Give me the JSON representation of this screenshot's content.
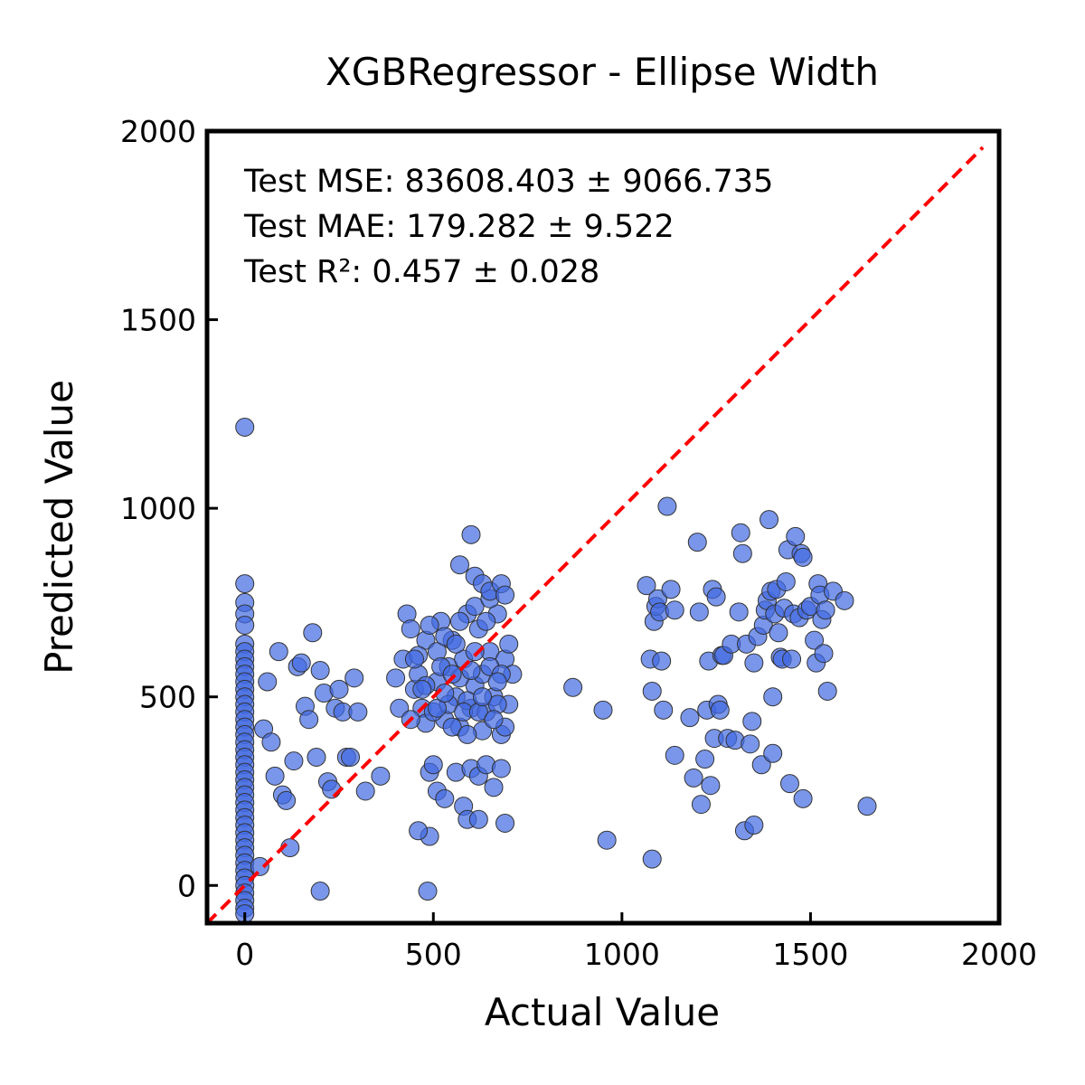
{
  "chart_data": {
    "type": "scatter",
    "title": "XGBRegressor - Ellipse Width",
    "xlabel": "Actual Value",
    "ylabel": "Predicted Value",
    "xlim": [
      -100,
      2000
    ],
    "ylim": [
      -100,
      2000
    ],
    "xticks": [
      "0",
      "500",
      "1000",
      "1500",
      "2000"
    ],
    "yticks": [
      "0",
      "500",
      "1000",
      "1500",
      "2000"
    ],
    "grid": false,
    "point_color": "#4169e1",
    "point_edge_color": "#333333",
    "reference_line": {
      "style": "dashed",
      "color": "#ff0000",
      "from": [
        -100,
        -100
      ],
      "to": [
        2000,
        2000
      ]
    },
    "annotations": [
      "Test MSE: 83608.403 ± 9066.735",
      "Test MAE: 179.282 ± 9.522",
      "Test R²: 0.457 ± 0.028"
    ],
    "points": [
      [
        0,
        1215
      ],
      [
        0,
        800
      ],
      [
        0,
        750
      ],
      [
        0,
        720
      ],
      [
        0,
        690
      ],
      [
        0,
        640
      ],
      [
        0,
        620
      ],
      [
        0,
        600
      ],
      [
        0,
        580
      ],
      [
        0,
        560
      ],
      [
        0,
        540
      ],
      [
        0,
        520
      ],
      [
        0,
        500
      ],
      [
        0,
        480
      ],
      [
        0,
        460
      ],
      [
        0,
        440
      ],
      [
        0,
        420
      ],
      [
        0,
        400
      ],
      [
        0,
        380
      ],
      [
        0,
        360
      ],
      [
        0,
        340
      ],
      [
        0,
        320
      ],
      [
        0,
        300
      ],
      [
        0,
        280
      ],
      [
        0,
        260
      ],
      [
        0,
        240
      ],
      [
        0,
        220
      ],
      [
        0,
        200
      ],
      [
        0,
        180
      ],
      [
        0,
        160
      ],
      [
        0,
        140
      ],
      [
        0,
        120
      ],
      [
        0,
        100
      ],
      [
        0,
        80
      ],
      [
        0,
        60
      ],
      [
        0,
        40
      ],
      [
        0,
        20
      ],
      [
        0,
        0
      ],
      [
        0,
        -20
      ],
      [
        0,
        -40
      ],
      [
        0,
        -60
      ],
      [
        0,
        -75
      ],
      [
        40,
        50
      ],
      [
        50,
        415
      ],
      [
        60,
        540
      ],
      [
        70,
        380
      ],
      [
        80,
        290
      ],
      [
        90,
        620
      ],
      [
        100,
        240
      ],
      [
        110,
        225
      ],
      [
        120,
        100
      ],
      [
        130,
        330
      ],
      [
        140,
        580
      ],
      [
        150,
        590
      ],
      [
        160,
        475
      ],
      [
        170,
        440
      ],
      [
        180,
        670
      ],
      [
        190,
        340
      ],
      [
        200,
        570
      ],
      [
        210,
        510
      ],
      [
        220,
        275
      ],
      [
        230,
        255
      ],
      [
        240,
        470
      ],
      [
        250,
        520
      ],
      [
        260,
        460
      ],
      [
        270,
        340
      ],
      [
        280,
        340
      ],
      [
        290,
        550
      ],
      [
        300,
        460
      ],
      [
        320,
        250
      ],
      [
        360,
        290
      ],
      [
        400,
        550
      ],
      [
        410,
        470
      ],
      [
        420,
        600
      ],
      [
        430,
        720
      ],
      [
        440,
        680
      ],
      [
        450,
        520
      ],
      [
        460,
        560
      ],
      [
        470,
        470
      ],
      [
        480,
        650
      ],
      [
        490,
        130
      ],
      [
        490,
        300
      ],
      [
        460,
        145
      ],
      [
        480,
        430
      ],
      [
        500,
        320
      ],
      [
        510,
        620
      ],
      [
        520,
        700
      ],
      [
        530,
        440
      ],
      [
        540,
        580
      ],
      [
        550,
        650
      ],
      [
        560,
        500
      ],
      [
        570,
        420
      ],
      [
        580,
        600
      ],
      [
        590,
        720
      ],
      [
        600,
        470
      ],
      [
        610,
        530
      ],
      [
        620,
        680
      ],
      [
        630,
        560
      ],
      [
        640,
        460
      ],
      [
        650,
        620
      ],
      [
        660,
        500
      ],
      [
        670,
        720
      ],
      [
        680,
        400
      ],
      [
        690,
        600
      ],
      [
        700,
        640
      ],
      [
        700,
        480
      ],
      [
        710,
        560
      ],
      [
        690,
        420
      ],
      [
        510,
        540
      ],
      [
        530,
        660
      ],
      [
        550,
        420
      ],
      [
        570,
        550
      ],
      [
        590,
        490
      ],
      [
        610,
        620
      ],
      [
        630,
        410
      ],
      [
        650,
        580
      ],
      [
        670,
        480
      ],
      [
        440,
        440
      ],
      [
        460,
        610
      ],
      [
        480,
        530
      ],
      [
        500,
        460
      ],
      [
        520,
        580
      ],
      [
        540,
        480
      ],
      [
        560,
        640
      ],
      [
        580,
        460
      ],
      [
        600,
        570
      ],
      [
        620,
        460
      ],
      [
        640,
        700
      ],
      [
        660,
        440
      ],
      [
        680,
        560
      ],
      [
        450,
        600
      ],
      [
        470,
        520
      ],
      [
        490,
        690
      ],
      [
        510,
        470
      ],
      [
        530,
        510
      ],
      [
        550,
        560
      ],
      [
        570,
        700
      ],
      [
        590,
        400
      ],
      [
        610,
        740
      ],
      [
        630,
        500
      ],
      [
        650,
        760
      ],
      [
        670,
        540
      ],
      [
        600,
        930
      ],
      [
        570,
        850
      ],
      [
        610,
        820
      ],
      [
        630,
        800
      ],
      [
        650,
        780
      ],
      [
        680,
        800
      ],
      [
        690,
        770
      ],
      [
        510,
        250
      ],
      [
        530,
        230
      ],
      [
        560,
        300
      ],
      [
        580,
        210
      ],
      [
        600,
        310
      ],
      [
        620,
        290
      ],
      [
        640,
        320
      ],
      [
        660,
        260
      ],
      [
        680,
        310
      ],
      [
        690,
        165
      ],
      [
        590,
        175
      ],
      [
        620,
        175
      ],
      [
        870,
        525
      ],
      [
        950,
        465
      ],
      [
        960,
        120
      ],
      [
        1065,
        795
      ],
      [
        1075,
        600
      ],
      [
        1080,
        515
      ],
      [
        1085,
        700
      ],
      [
        1090,
        740
      ],
      [
        1095,
        760
      ],
      [
        1100,
        725
      ],
      [
        1105,
        595
      ],
      [
        1110,
        465
      ],
      [
        1120,
        1005
      ],
      [
        1130,
        785
      ],
      [
        1140,
        730
      ],
      [
        1140,
        345
      ],
      [
        1080,
        70
      ],
      [
        1180,
        445
      ],
      [
        1190,
        285
      ],
      [
        1200,
        910
      ],
      [
        1205,
        725
      ],
      [
        1210,
        215
      ],
      [
        1220,
        335
      ],
      [
        1225,
        465
      ],
      [
        1230,
        595
      ],
      [
        1235,
        265
      ],
      [
        1240,
        785
      ],
      [
        1245,
        390
      ],
      [
        1250,
        765
      ],
      [
        1255,
        480
      ],
      [
        1260,
        465
      ],
      [
        1265,
        610
      ],
      [
        1270,
        610
      ],
      [
        1280,
        390
      ],
      [
        1290,
        640
      ],
      [
        1300,
        385
      ],
      [
        1310,
        725
      ],
      [
        1315,
        935
      ],
      [
        1320,
        880
      ],
      [
        1325,
        145
      ],
      [
        1330,
        640
      ],
      [
        1340,
        375
      ],
      [
        1345,
        435
      ],
      [
        1350,
        590
      ],
      [
        1350,
        160
      ],
      [
        1360,
        660
      ],
      [
        1370,
        320
      ],
      [
        1375,
        690
      ],
      [
        1380,
        730
      ],
      [
        1385,
        755
      ],
      [
        1390,
        970
      ],
      [
        1395,
        780
      ],
      [
        1400,
        350
      ],
      [
        1400,
        500
      ],
      [
        1405,
        720
      ],
      [
        1410,
        785
      ],
      [
        1415,
        670
      ],
      [
        1420,
        605
      ],
      [
        1425,
        600
      ],
      [
        1430,
        735
      ],
      [
        1435,
        805
      ],
      [
        1440,
        890
      ],
      [
        1445,
        270
      ],
      [
        1450,
        600
      ],
      [
        1455,
        720
      ],
      [
        1460,
        925
      ],
      [
        1470,
        710
      ],
      [
        1475,
        880
      ],
      [
        1480,
        230
      ],
      [
        1480,
        870
      ],
      [
        1490,
        730
      ],
      [
        1500,
        740
      ],
      [
        1510,
        650
      ],
      [
        1515,
        590
      ],
      [
        1520,
        800
      ],
      [
        1525,
        770
      ],
      [
        1530,
        705
      ],
      [
        1535,
        615
      ],
      [
        1540,
        730
      ],
      [
        1545,
        515
      ],
      [
        1560,
        780
      ],
      [
        1590,
        755
      ],
      [
        1650,
        210
      ],
      [
        200,
        -15
      ],
      [
        485,
        -15
      ]
    ]
  }
}
